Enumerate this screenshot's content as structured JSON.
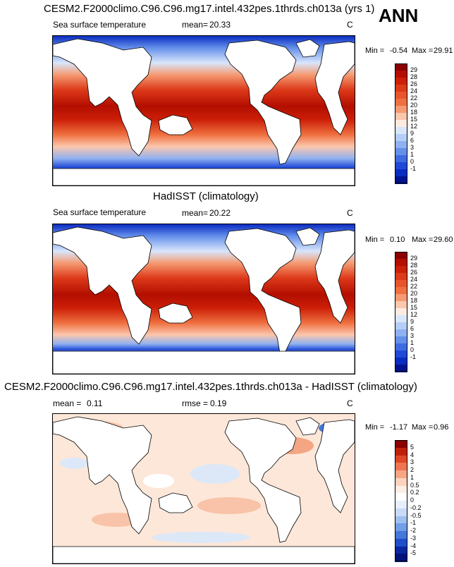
{
  "season": "ANN",
  "panels": [
    {
      "title": "CESM2.F2000climo.C96.C96.mg17.intel.432pes.1thrds.ch013a (yrs 1)",
      "variable": "Sea surface temperature",
      "stat1_label": "mean=",
      "stat1_value": "20.33",
      "stat2_label": "",
      "stat2_value": "",
      "units": "C",
      "min_label": "Min =",
      "min_value": "-0.54",
      "max_label": "Max =",
      "max_value": "29.91",
      "legend_labels": [
        "29",
        "28",
        "26",
        "24",
        "22",
        "20",
        "18",
        "15",
        "12",
        "9",
        "6",
        "3",
        "1",
        "0",
        "-1"
      ],
      "colors": {
        "warm": "#d23a1c",
        "cool": "#2b5ee8"
      }
    },
    {
      "title": "HadISST (climatology)",
      "variable": "Sea surface temperature",
      "stat1_label": "mean=",
      "stat1_value": "20.22",
      "stat2_label": "",
      "stat2_value": "",
      "units": "C",
      "min_label": "Min =",
      "min_value": "0.10",
      "max_label": "Max =",
      "max_value": "29.60",
      "legend_labels": [
        "29",
        "28",
        "26",
        "24",
        "22",
        "20",
        "18",
        "15",
        "12",
        "9",
        "6",
        "3",
        "1",
        "0",
        "-1"
      ],
      "colors": {
        "warm": "#d23a1c",
        "cool": "#2b5ee8"
      }
    },
    {
      "title": "CESM2.F2000climo.C96.C96.mg17.intel.432pes.1thrds.ch013a - HadISST (climatology)",
      "variable": "",
      "stat1_label": "mean =",
      "stat1_value": "0.11",
      "stat2_label": "rmse =",
      "stat2_value": "0.19",
      "units": "C",
      "min_label": "Min =",
      "min_value": "-1.17",
      "max_label": "Max =",
      "max_value": "0.96",
      "legend_labels": [
        "5",
        "4",
        "3",
        "2",
        "1",
        "0.5",
        "0.2",
        "0",
        "-0.2",
        "-0.5",
        "-1",
        "-2",
        "-3",
        "-4",
        "-5"
      ],
      "colors": {
        "warm": "#f4a582",
        "cool": "#92c5de"
      }
    }
  ],
  "colorbars": {
    "sst": [
      "#8c0000",
      "#b30e00",
      "#cc1f08",
      "#dd3a1a",
      "#e8552c",
      "#ef7040",
      "#f59a72",
      "#fbc7ad",
      "#fdebe0",
      "#d8e6fb",
      "#b5cef7",
      "#8fb1f1",
      "#6590ea",
      "#3f6be2",
      "#1f49d6",
      "#0a2cc2",
      "#00138f"
    ],
    "diff": [
      "#8c0000",
      "#c0200a",
      "#de4726",
      "#ef7552",
      "#f8a584",
      "#fcd3bd",
      "#fdeee4",
      "#ffffff",
      "#e6effb",
      "#c8dbf6",
      "#9fc0ef",
      "#729fe6",
      "#4478da",
      "#1f4fc8",
      "#0a27a0",
      "#00137a"
    ]
  }
}
